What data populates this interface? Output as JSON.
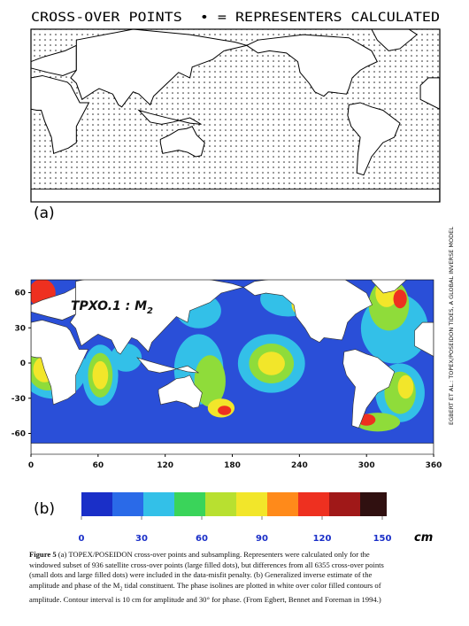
{
  "figure_a": {
    "title": "CROSS-OVER POINTS  • = REPRESENTERS CALCULATED",
    "label": "(a)"
  },
  "figure_b": {
    "label": "(b)",
    "map_title": "TPXO.1 : M",
    "map_title_subscript": "2",
    "y_ticks": [
      60,
      30,
      0,
      -30,
      -60
    ],
    "x_ticks": [
      0,
      60,
      120,
      180,
      240,
      300,
      360
    ],
    "colorbar_ticks": [
      0,
      30,
      60,
      90,
      120,
      150
    ],
    "colorbar_unit": "cm"
  },
  "running_head": "EGBERT ET AL.: TOPEX/POSEIDON TIDES, A GLOBAL INVERSE MODEL",
  "caption": {
    "label": "Figure 5",
    "text_1": "(a) TOPEX/POSEIDON cross-over points and subsampling. Representers were calculated only for the windowed subset of 936 satellite cross-over points (large filled dots), but differences from all 6355 cross-over points (small dots and large filled dots) were included in the data-misfit penalty.  (b) Generalized inverse estimate of the amplitude and phase of the M",
    "subscript": "2",
    "text_2": " tidal constituent.  The phase isolines are plotted in white over color filled contours of amplitude. Contour interval is 10 cm for amplitude and 30° for phase. (From Egbert, Bennet and Foreman in 1994.)"
  }
}
